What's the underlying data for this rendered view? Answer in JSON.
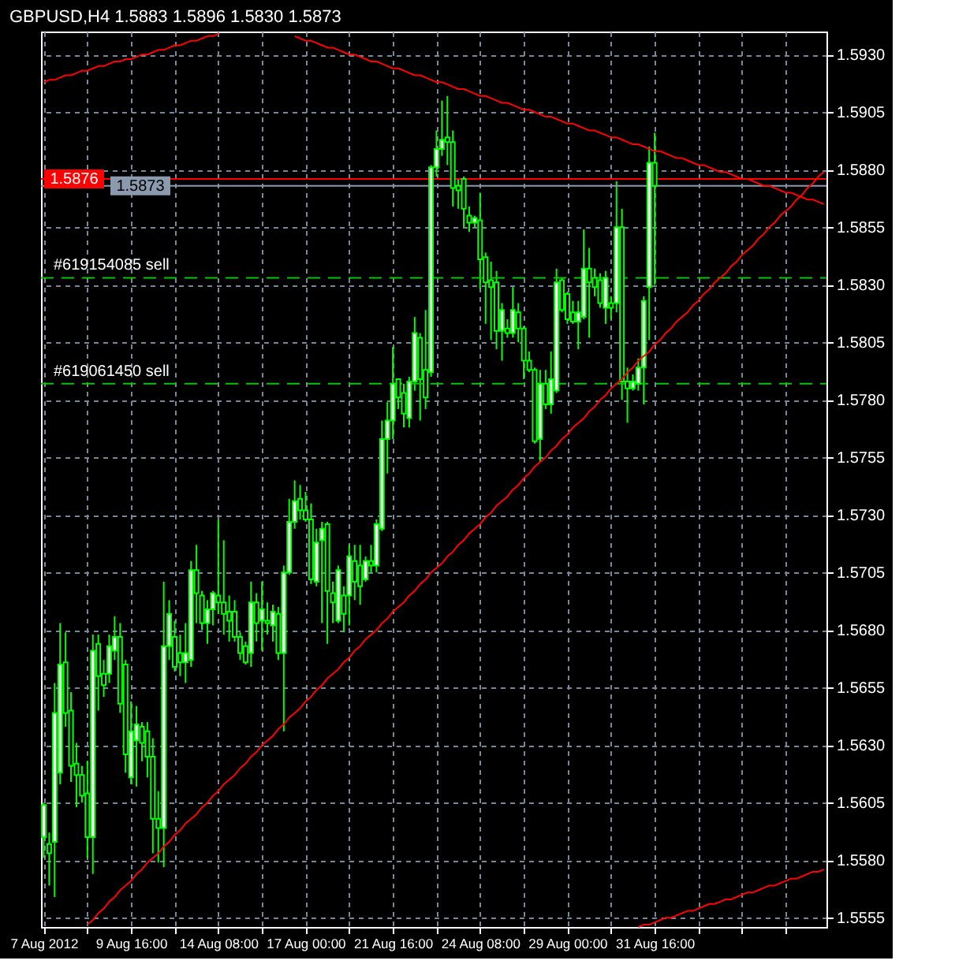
{
  "chart_data": {
    "type": "candlestick",
    "title": "GBPUSD,H4 1.5883 1.5896 1.5830 1.5873",
    "color": "#00ff00",
    "categories": [
      "7 Aug 2012",
      null,
      null,
      null,
      null,
      null,
      null,
      null,
      null,
      null,
      null,
      null,
      null,
      null,
      null,
      null,
      "9 Aug 16:00",
      null,
      null,
      null,
      null,
      null,
      null,
      null,
      null,
      null,
      null,
      null,
      null,
      null,
      null,
      null,
      "14 Aug 08:00",
      null,
      null,
      null,
      null,
      null,
      null,
      null,
      null,
      null,
      null,
      null,
      null,
      null,
      null,
      null,
      "17 Aug 00:00",
      null,
      null,
      null,
      null,
      null,
      null,
      null,
      null,
      null,
      null,
      null,
      null,
      null,
      null,
      null,
      "21 Aug 16:00",
      null,
      null,
      null,
      null,
      null,
      null,
      null,
      null,
      null,
      null,
      null,
      null,
      null,
      null,
      null,
      "24 Aug 08:00",
      null,
      null,
      null,
      null,
      null,
      null,
      null,
      null,
      null,
      null,
      null,
      null,
      null,
      null,
      null,
      "29 Aug 00:00",
      null,
      null,
      null,
      null,
      null,
      null,
      null,
      null,
      null,
      null,
      null,
      null,
      null,
      null,
      null,
      "31 Aug 16:00",
      null,
      null,
      null,
      null,
      null,
      null,
      null,
      null,
      null,
      null,
      null,
      null,
      null,
      null,
      null,
      null,
      null,
      null,
      null,
      null,
      null,
      null,
      null,
      null,
      null,
      null,
      null,
      null,
      null,
      null,
      null
    ],
    "ohlc": [
      [
        1.559,
        1.5605,
        1.5581,
        1.5604
      ],
      [
        1.5587,
        1.5592,
        1.5569,
        1.5583
      ],
      [
        1.5588,
        1.5657,
        1.5564,
        1.5644
      ],
      [
        1.5618,
        1.5683,
        1.5613,
        1.5665
      ],
      [
        1.5666,
        1.5679,
        1.5638,
        1.5644
      ],
      [
        1.5645,
        1.5653,
        1.5614,
        1.5621
      ],
      [
        1.5622,
        1.5631,
        1.5603,
        1.5617
      ],
      [
        1.5617,
        1.5621,
        1.5605,
        1.5608
      ],
      [
        1.5609,
        1.5623,
        1.5581,
        1.559
      ],
      [
        1.559,
        1.5678,
        1.5574,
        1.5671
      ],
      [
        1.5674,
        1.5678,
        1.5645,
        1.566
      ],
      [
        1.5661,
        1.5667,
        1.5651,
        1.5656
      ],
      [
        1.5661,
        1.5678,
        1.5657,
        1.5673
      ],
      [
        1.5671,
        1.5686,
        1.5667,
        1.5677
      ],
      [
        1.5677,
        1.5683,
        1.5644,
        1.5648
      ],
      [
        1.5665,
        1.5667,
        1.5618,
        1.5626
      ],
      [
        1.5616,
        1.5649,
        1.5613,
        1.5636
      ],
      [
        1.5632,
        1.5647,
        1.5612,
        1.5639
      ],
      [
        1.5638,
        1.564,
        1.5623,
        1.5631
      ],
      [
        1.5636,
        1.564,
        1.5616,
        1.5625
      ],
      [
        1.5625,
        1.5633,
        1.5583,
        1.5598
      ],
      [
        1.5598,
        1.561,
        1.5579,
        1.5594
      ],
      [
        1.5594,
        1.5701,
        1.5577,
        1.5673
      ],
      [
        1.5673,
        1.5693,
        1.5667,
        1.5687
      ],
      [
        1.5677,
        1.5684,
        1.5662,
        1.5664
      ],
      [
        1.567,
        1.5678,
        1.566,
        1.5666
      ],
      [
        1.5666,
        1.5683,
        1.5657,
        1.567
      ],
      [
        1.5667,
        1.571,
        1.5664,
        1.5706
      ],
      [
        1.5706,
        1.5717,
        1.5683,
        1.5696
      ],
      [
        1.5695,
        1.5697,
        1.568,
        1.5683
      ],
      [
        1.5683,
        1.5693,
        1.5674,
        1.5689
      ],
      [
        1.5689,
        1.5697,
        1.5682,
        1.5696
      ],
      [
        1.5695,
        1.5728,
        1.5687,
        1.5692
      ],
      [
        1.5692,
        1.5719,
        1.5678,
        1.5687
      ],
      [
        1.5688,
        1.5695,
        1.5675,
        1.5684
      ],
      [
        1.5688,
        1.5693,
        1.5675,
        1.5677
      ],
      [
        1.5677,
        1.5679,
        1.5667,
        1.567
      ],
      [
        1.5673,
        1.5675,
        1.5665,
        1.5666
      ],
      [
        1.567,
        1.5701,
        1.5664,
        1.5692
      ],
      [
        1.5692,
        1.5696,
        1.5675,
        1.5683
      ],
      [
        1.5684,
        1.5701,
        1.5671,
        1.5689
      ],
      [
        1.5684,
        1.5692,
        1.5678,
        1.5683
      ],
      [
        1.5682,
        1.5691,
        1.5675,
        1.5688
      ],
      [
        1.5687,
        1.569,
        1.5667,
        1.567
      ],
      [
        1.567,
        1.5708,
        1.5636,
        1.5705
      ],
      [
        1.5705,
        1.5737,
        1.5704,
        1.5727
      ],
      [
        1.5727,
        1.5745,
        1.5724,
        1.5736
      ],
      [
        1.5737,
        1.5743,
        1.5728,
        1.5732
      ],
      [
        1.5732,
        1.574,
        1.5727,
        1.5728
      ],
      [
        1.5728,
        1.5735,
        1.57,
        1.5702
      ],
      [
        1.5701,
        1.5724,
        1.5699,
        1.5718
      ],
      [
        1.5719,
        1.5727,
        1.5683,
        1.5724
      ],
      [
        1.5726,
        1.5727,
        1.5674,
        1.5697
      ],
      [
        1.5696,
        1.5701,
        1.5683,
        1.5692
      ],
      [
        1.5684,
        1.5708,
        1.5683,
        1.5706
      ],
      [
        1.5695,
        1.5699,
        1.5679,
        1.5687
      ],
      [
        1.5695,
        1.5717,
        1.5682,
        1.5712
      ],
      [
        1.571,
        1.5717,
        1.5693,
        1.5701
      ],
      [
        1.5708,
        1.5717,
        1.5691,
        1.5699
      ],
      [
        1.5702,
        1.5712,
        1.5701,
        1.571
      ],
      [
        1.571,
        1.5717,
        1.5705,
        1.5708
      ],
      [
        1.5708,
        1.5728,
        1.5705,
        1.5726
      ],
      [
        1.5724,
        1.5771,
        1.5723,
        1.5763
      ],
      [
        1.5763,
        1.5779,
        1.5748,
        1.5771
      ],
      [
        1.5771,
        1.5803,
        1.5763,
        1.5787
      ],
      [
        1.5789,
        1.5789,
        1.5776,
        1.5781
      ],
      [
        1.5783,
        1.5787,
        1.5768,
        1.5774
      ],
      [
        1.5772,
        1.579,
        1.5768,
        1.5788
      ],
      [
        1.5788,
        1.5816,
        1.5784,
        1.5809
      ],
      [
        1.5807,
        1.5809,
        1.5771,
        1.5789
      ],
      [
        1.5793,
        1.5819,
        1.5776,
        1.5781
      ],
      [
        1.5792,
        1.5882,
        1.579,
        1.5881
      ],
      [
        1.5881,
        1.5897,
        1.5877,
        1.5889
      ],
      [
        1.5889,
        1.591,
        1.5886,
        1.5893
      ],
      [
        1.5894,
        1.5912,
        1.5882,
        1.5892
      ],
      [
        1.5892,
        1.5897,
        1.5864,
        1.5872
      ],
      [
        1.5873,
        1.5876,
        1.5863,
        1.5871
      ],
      [
        1.5876,
        1.5877,
        1.5855,
        1.5863
      ],
      [
        1.586,
        1.5864,
        1.5853,
        1.5857
      ],
      [
        1.5857,
        1.586,
        1.5855,
        1.5859
      ],
      [
        1.5858,
        1.587,
        1.5828,
        1.5841
      ],
      [
        1.5842,
        1.5844,
        1.5813,
        1.5831
      ],
      [
        1.5832,
        1.584,
        1.5806,
        1.5829
      ],
      [
        1.5831,
        1.5836,
        1.5802,
        1.581
      ],
      [
        1.581,
        1.5822,
        1.5797,
        1.5819
      ],
      [
        1.5811,
        1.5815,
        1.5807,
        1.5809
      ],
      [
        1.5809,
        1.5829,
        1.5807,
        1.5819
      ],
      [
        1.5818,
        1.5822,
        1.5805,
        1.5811
      ],
      [
        1.5811,
        1.5812,
        1.5789,
        1.5797
      ],
      [
        1.5797,
        1.5801,
        1.5792,
        1.5793
      ],
      [
        1.5793,
        1.5794,
        1.5761,
        1.5762
      ],
      [
        1.5763,
        1.5793,
        1.5753,
        1.5787
      ],
      [
        1.5787,
        1.5793,
        1.5776,
        1.5778
      ],
      [
        1.5778,
        1.5801,
        1.5774,
        1.5789
      ],
      [
        1.5784,
        1.5837,
        1.5783,
        1.5831
      ],
      [
        1.5832,
        1.5833,
        1.5818,
        1.5819
      ],
      [
        1.5826,
        1.5827,
        1.5813,
        1.5815
      ],
      [
        1.5818,
        1.5823,
        1.5813,
        1.5814
      ],
      [
        1.5814,
        1.5823,
        1.5802,
        1.5818
      ],
      [
        1.5816,
        1.5854,
        1.5815,
        1.5837
      ],
      [
        1.5837,
        1.5846,
        1.5807,
        1.5831
      ],
      [
        1.5833,
        1.5837,
        1.5825,
        1.5829
      ],
      [
        1.5832,
        1.5835,
        1.582,
        1.5822
      ],
      [
        1.582,
        1.5836,
        1.5813,
        1.5833
      ],
      [
        1.5822,
        1.5825,
        1.5815,
        1.582
      ],
      [
        1.5822,
        1.5875,
        1.5818,
        1.5855
      ],
      [
        1.5855,
        1.5863,
        1.578,
        1.5788
      ],
      [
        1.5788,
        1.5794,
        1.577,
        1.5785
      ],
      [
        1.5785,
        1.5791,
        1.5784,
        1.5788
      ],
      [
        1.5787,
        1.5798,
        1.5784,
        1.5794
      ],
      [
        1.5794,
        1.5825,
        1.5778,
        1.5823
      ],
      [
        1.5829,
        1.589,
        1.5806,
        1.5883
      ],
      [
        1.5883,
        1.5896,
        1.583,
        1.5873
      ],
      null,
      null,
      null,
      null,
      null,
      null,
      null,
      null,
      null,
      null,
      null,
      null,
      null,
      null,
      null,
      null,
      null,
      null,
      null,
      null,
      null,
      null,
      null,
      null,
      null,
      null,
      null,
      null,
      null,
      null,
      null
    ],
    "series": [
      {
        "type": "line",
        "color": "#ff0000",
        "values": [
          1.5918,
          1.5919,
          1.5919,
          1.592,
          1.5921,
          1.5921,
          1.5922,
          1.5923,
          1.5923,
          1.5924,
          1.5925,
          1.5925,
          1.5926,
          1.5927,
          1.5927,
          1.5928,
          1.5928,
          1.5929,
          1.593,
          1.593,
          1.5931,
          1.5932,
          1.5932,
          1.5933,
          1.5934,
          1.5934,
          1.5935,
          1.5936,
          1.5936,
          1.5937,
          1.5938,
          1.5938,
          1.5939,
          null,
          null,
          null,
          null,
          null,
          null,
          null,
          null,
          null,
          null,
          null,
          null,
          null,
          null,
          null,
          null,
          null,
          null,
          null,
          null,
          null,
          null,
          null,
          null,
          null,
          null,
          null,
          null,
          null,
          null,
          null,
          null,
          null,
          null,
          null,
          null,
          null,
          null,
          null,
          null,
          null,
          null,
          null,
          null,
          null,
          null,
          null,
          null,
          null,
          null,
          null,
          null,
          null,
          null,
          null,
          null,
          null,
          null,
          null,
          null,
          null,
          null,
          null,
          null,
          null,
          null,
          null,
          null,
          null,
          null,
          null,
          null,
          null,
          null,
          null,
          null,
          null,
          null,
          null,
          null,
          null,
          null,
          null,
          null,
          null,
          null,
          null,
          null,
          null,
          null,
          null,
          null,
          null,
          null,
          null,
          null,
          null,
          null,
          null,
          null,
          null,
          null,
          null,
          null,
          null,
          null,
          null,
          null,
          null,
          null,
          null
        ]
      },
      {
        "type": "line",
        "color": "#ff0000",
        "values": [
          null,
          null,
          null,
          null,
          null,
          null,
          null,
          null,
          null,
          null,
          null,
          null,
          null,
          null,
          null,
          null,
          null,
          null,
          null,
          null,
          null,
          null,
          null,
          null,
          null,
          null,
          null,
          null,
          null,
          null,
          null,
          null,
          null,
          null,
          null,
          null,
          null,
          null,
          null,
          null,
          null,
          null,
          null,
          null,
          null,
          null,
          1.5938,
          1.5937,
          1.5936,
          1.5936,
          1.5935,
          1.5934,
          1.5933,
          1.5933,
          1.5932,
          1.5931,
          1.593,
          1.593,
          1.5929,
          1.5928,
          1.5927,
          1.5927,
          1.5926,
          1.5925,
          1.5924,
          1.5924,
          1.5923,
          1.5922,
          1.5921,
          1.5921,
          1.592,
          1.5919,
          1.5918,
          1.5918,
          1.5917,
          1.5916,
          1.5915,
          1.5915,
          1.5914,
          1.5913,
          1.5912,
          1.5912,
          1.5911,
          1.591,
          1.5909,
          1.5909,
          1.5908,
          1.5907,
          1.5906,
          1.5906,
          1.5905,
          1.5904,
          1.5903,
          1.5903,
          1.5902,
          1.5901,
          1.59,
          1.59,
          1.5899,
          1.5898,
          1.5897,
          1.5897,
          1.5896,
          1.5895,
          1.5894,
          1.5894,
          1.5893,
          1.5892,
          1.5891,
          1.5891,
          1.589,
          1.5889,
          1.5888,
          1.5888,
          1.5887,
          1.5886,
          1.5885,
          1.5885,
          1.5884,
          1.5883,
          1.5882,
          1.5882,
          1.5881,
          1.588,
          1.5879,
          1.5879,
          1.5878,
          1.5877,
          1.5876,
          1.5876,
          1.5875,
          1.5874,
          1.5873,
          1.5873,
          1.5872,
          1.5871,
          1.587,
          1.587,
          1.5869,
          1.5868,
          1.5867,
          1.5867,
          1.5866,
          1.5865
        ]
      },
      {
        "type": "line",
        "color": "#ff0000",
        "values": [
          null,
          null,
          null,
          null,
          null,
          null,
          null,
          null,
          1.5552,
          1.5554,
          1.5557,
          1.5559,
          1.5562,
          1.5564,
          1.5567,
          1.5569,
          1.5571,
          1.5574,
          1.5576,
          1.5579,
          1.5581,
          1.5583,
          1.5586,
          1.5588,
          1.5591,
          1.5593,
          1.5596,
          1.5598,
          1.56,
          1.5603,
          1.5605,
          1.5608,
          1.561,
          1.5613,
          1.5615,
          1.5617,
          1.562,
          1.5622,
          1.5625,
          1.5627,
          1.563,
          1.5632,
          1.5634,
          1.5637,
          1.5639,
          1.5642,
          1.5644,
          1.5646,
          1.5649,
          1.5651,
          1.5654,
          1.5656,
          1.5659,
          1.5661,
          1.5663,
          1.5666,
          1.5668,
          1.5671,
          1.5673,
          1.5676,
          1.5678,
          1.568,
          1.5683,
          1.5685,
          1.5688,
          1.569,
          1.5692,
          1.5695,
          1.5697,
          1.57,
          1.5702,
          1.5705,
          1.5707,
          1.5709,
          1.5712,
          1.5714,
          1.5717,
          1.5719,
          1.5722,
          1.5724,
          1.5726,
          1.5729,
          1.5731,
          1.5734,
          1.5736,
          1.5738,
          1.5741,
          1.5743,
          1.5746,
          1.5748,
          1.5751,
          1.5753,
          1.5755,
          1.5758,
          1.576,
          1.5763,
          1.5765,
          1.5768,
          1.577,
          1.5772,
          1.5775,
          1.5777,
          1.578,
          1.5782,
          1.5785,
          1.5787,
          1.5789,
          1.5792,
          1.5794,
          1.5797,
          1.5799,
          1.5801,
          1.5804,
          1.5806,
          1.5809,
          1.5811,
          1.5814,
          1.5816,
          1.5818,
          1.5821,
          1.5823,
          1.5826,
          1.5828,
          1.5831,
          1.5833,
          1.5835,
          1.5838,
          1.584,
          1.5843,
          1.5845,
          1.5847,
          1.585,
          1.5852,
          1.5855,
          1.5857,
          1.586,
          1.5862,
          1.5864,
          1.5867,
          1.5869,
          1.5872,
          1.5874,
          1.5877,
          1.5879
        ]
      },
      {
        "type": "line",
        "color": "#ff0000",
        "values": [
          null,
          null,
          null,
          null,
          null,
          null,
          null,
          null,
          null,
          null,
          null,
          null,
          null,
          null,
          null,
          null,
          null,
          null,
          null,
          null,
          null,
          null,
          null,
          null,
          null,
          null,
          null,
          null,
          null,
          null,
          null,
          null,
          null,
          null,
          null,
          null,
          null,
          null,
          null,
          null,
          null,
          null,
          null,
          null,
          null,
          null,
          null,
          null,
          null,
          null,
          null,
          null,
          null,
          null,
          null,
          null,
          null,
          null,
          null,
          null,
          null,
          null,
          null,
          null,
          null,
          null,
          null,
          null,
          null,
          null,
          null,
          null,
          null,
          null,
          null,
          null,
          null,
          null,
          null,
          null,
          null,
          null,
          null,
          null,
          null,
          null,
          null,
          null,
          null,
          null,
          null,
          null,
          null,
          null,
          null,
          null,
          null,
          null,
          null,
          null,
          null,
          null,
          null,
          null,
          null,
          null,
          null,
          null,
          null,
          1.5551,
          1.5552,
          1.5552,
          1.5553,
          1.5554,
          1.5555,
          1.5555,
          1.5556,
          1.5557,
          1.5558,
          1.5558,
          1.5559,
          1.556,
          1.5561,
          1.5561,
          1.5562,
          1.5563,
          1.5563,
          1.5564,
          1.5565,
          1.5566,
          1.5566,
          1.5567,
          1.5568,
          1.5569,
          1.5569,
          1.557,
          1.5571,
          1.5572,
          1.5572,
          1.5573,
          1.5574,
          1.5575,
          1.5575,
          1.5576
        ]
      }
    ],
    "ref_lines": [
      {
        "axis": "y",
        "value": 1.5876,
        "label": "1.5876",
        "color": "#ff0000",
        "line_style": "solid"
      },
      {
        "axis": "y",
        "value": 1.5873,
        "label": "1.5873",
        "color": "#8c9aae",
        "line_style": "solid"
      },
      {
        "axis": "y",
        "value": 1.5833,
        "label": "#619154085 sell",
        "color": "#00c800",
        "line_style": "dashed"
      },
      {
        "axis": "y",
        "value": 1.5787,
        "label": "#619061450 sell",
        "color": "#00c800",
        "line_style": "dashed"
      }
    ],
    "ylim": [
      1.5551,
      1.594
    ],
    "yticks": [
      1.5555,
      {
        "value": 1.558,
        "label": "1.5580"
      },
      1.5605,
      {
        "value": 1.563,
        "label": "1.5630"
      },
      1.5655,
      {
        "value": 1.568,
        "label": "1.5680"
      },
      1.5705,
      {
        "value": 1.573,
        "label": "1.5730"
      },
      1.5755,
      {
        "value": 1.578,
        "label": "1.5780"
      },
      1.5805,
      {
        "value": 1.583,
        "label": "1.5830"
      },
      1.5855,
      {
        "value": 1.588,
        "label": "1.5880"
      },
      1.5905,
      {
        "value": 1.593,
        "label": "1.5930"
      }
    ],
    "grid": true
  }
}
